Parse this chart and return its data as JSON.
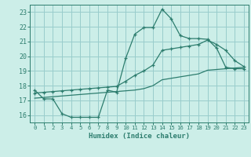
{
  "xlabel": "Humidex (Indice chaleur)",
  "bg_color": "#cceee8",
  "grid_color": "#99cccc",
  "line_color": "#2d7d6e",
  "xlim": [
    -0.5,
    23.5
  ],
  "ylim": [
    15.5,
    23.5
  ],
  "xticks": [
    0,
    1,
    2,
    3,
    4,
    5,
    6,
    7,
    8,
    9,
    10,
    11,
    12,
    13,
    14,
    15,
    16,
    17,
    18,
    19,
    20,
    21,
    22,
    23
  ],
  "yticks": [
    16,
    17,
    18,
    19,
    20,
    21,
    22,
    23
  ],
  "curve1_x": [
    0,
    1,
    2,
    3,
    4,
    5,
    6,
    7,
    8,
    9,
    10,
    11,
    12,
    13,
    14,
    15,
    16,
    17,
    18,
    19,
    20,
    21,
    22,
    23
  ],
  "curve1_y": [
    17.7,
    17.1,
    17.1,
    16.1,
    15.85,
    15.85,
    15.85,
    15.85,
    17.7,
    17.55,
    19.85,
    21.5,
    21.95,
    21.95,
    23.2,
    22.55,
    21.4,
    21.2,
    21.2,
    21.15,
    20.55,
    19.25,
    19.15,
    19.15
  ],
  "curve2_x": [
    0,
    1,
    2,
    3,
    4,
    5,
    6,
    7,
    8,
    9,
    10,
    11,
    12,
    13,
    14,
    15,
    16,
    17,
    18,
    19,
    20,
    21,
    22,
    23
  ],
  "curve2_y": [
    17.5,
    17.55,
    17.6,
    17.65,
    17.7,
    17.75,
    17.8,
    17.85,
    17.9,
    17.95,
    18.3,
    18.7,
    19.0,
    19.4,
    20.4,
    20.5,
    20.6,
    20.7,
    20.8,
    21.1,
    20.8,
    20.4,
    19.7,
    19.3
  ],
  "curve3_x": [
    0,
    1,
    2,
    3,
    4,
    5,
    6,
    7,
    8,
    9,
    10,
    11,
    12,
    13,
    14,
    15,
    16,
    17,
    18,
    19,
    20,
    21,
    22,
    23
  ],
  "curve3_y": [
    17.15,
    17.2,
    17.25,
    17.3,
    17.35,
    17.4,
    17.45,
    17.5,
    17.55,
    17.6,
    17.65,
    17.7,
    17.8,
    18.0,
    18.4,
    18.5,
    18.6,
    18.7,
    18.8,
    19.05,
    19.1,
    19.15,
    19.2,
    19.25
  ]
}
